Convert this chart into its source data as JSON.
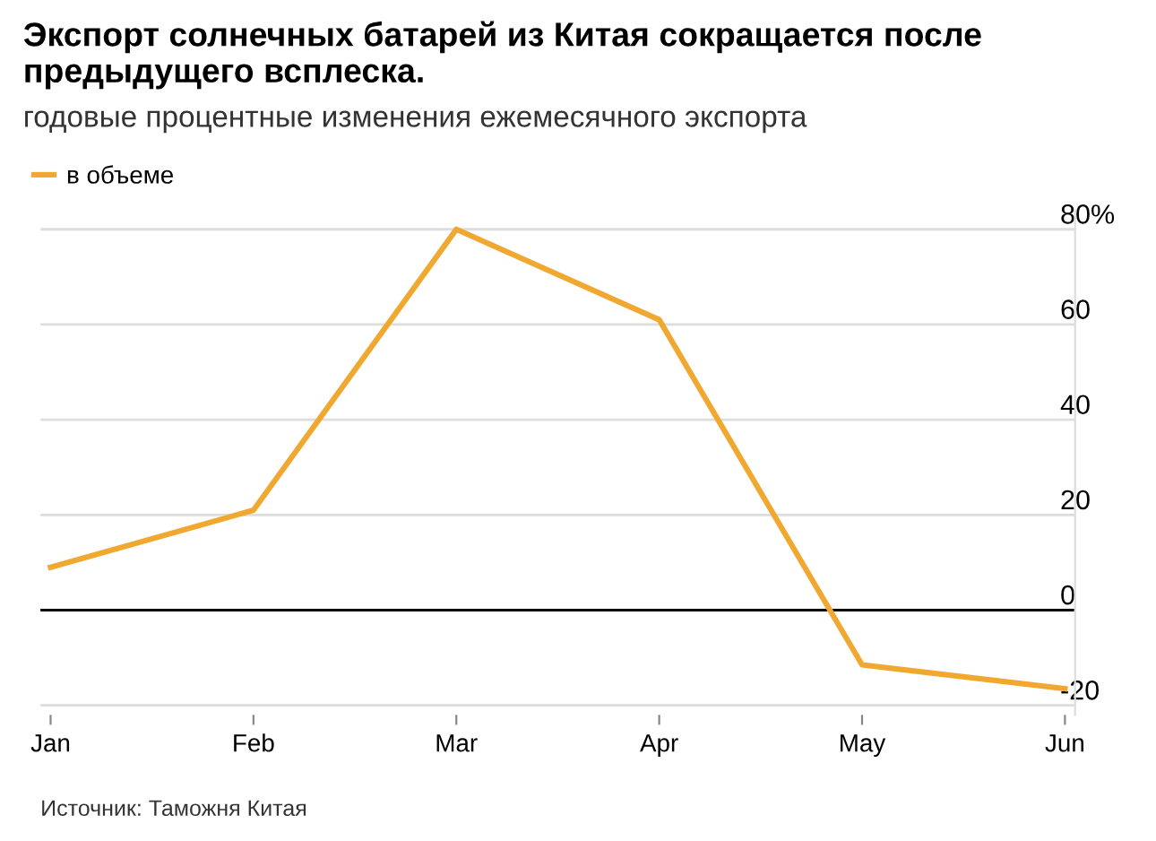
{
  "chart_data": {
    "type": "line",
    "title": "Экспорт солнечных батарей из Китая сокращается после предыдущего всплеска.",
    "subtitle": "годовые процентные изменения ежемесячного экспорта",
    "categories": [
      "Jan",
      "Feb",
      "Mar",
      "Apr",
      "May",
      "Jun"
    ],
    "series": [
      {
        "name": "в объеме",
        "color": "#f0a830",
        "values": [
          9,
          21,
          80,
          61,
          -11.5,
          -16.5
        ]
      }
    ],
    "ylim": [
      -22,
      84
    ],
    "yticks": [
      {
        "value": 80,
        "label": "80%"
      },
      60,
      40,
      20,
      0,
      {
        "value": -20,
        "label": "-20"
      }
    ],
    "grid": "y",
    "legend": "top left",
    "marker": "none",
    "line_style": "solid",
    "ref_lines": [
      {
        "axis": "y",
        "value": 0,
        "color": "#000000",
        "line_style": "solid"
      }
    ],
    "annotations": [
      "Источник: Таможня Китая"
    ]
  }
}
